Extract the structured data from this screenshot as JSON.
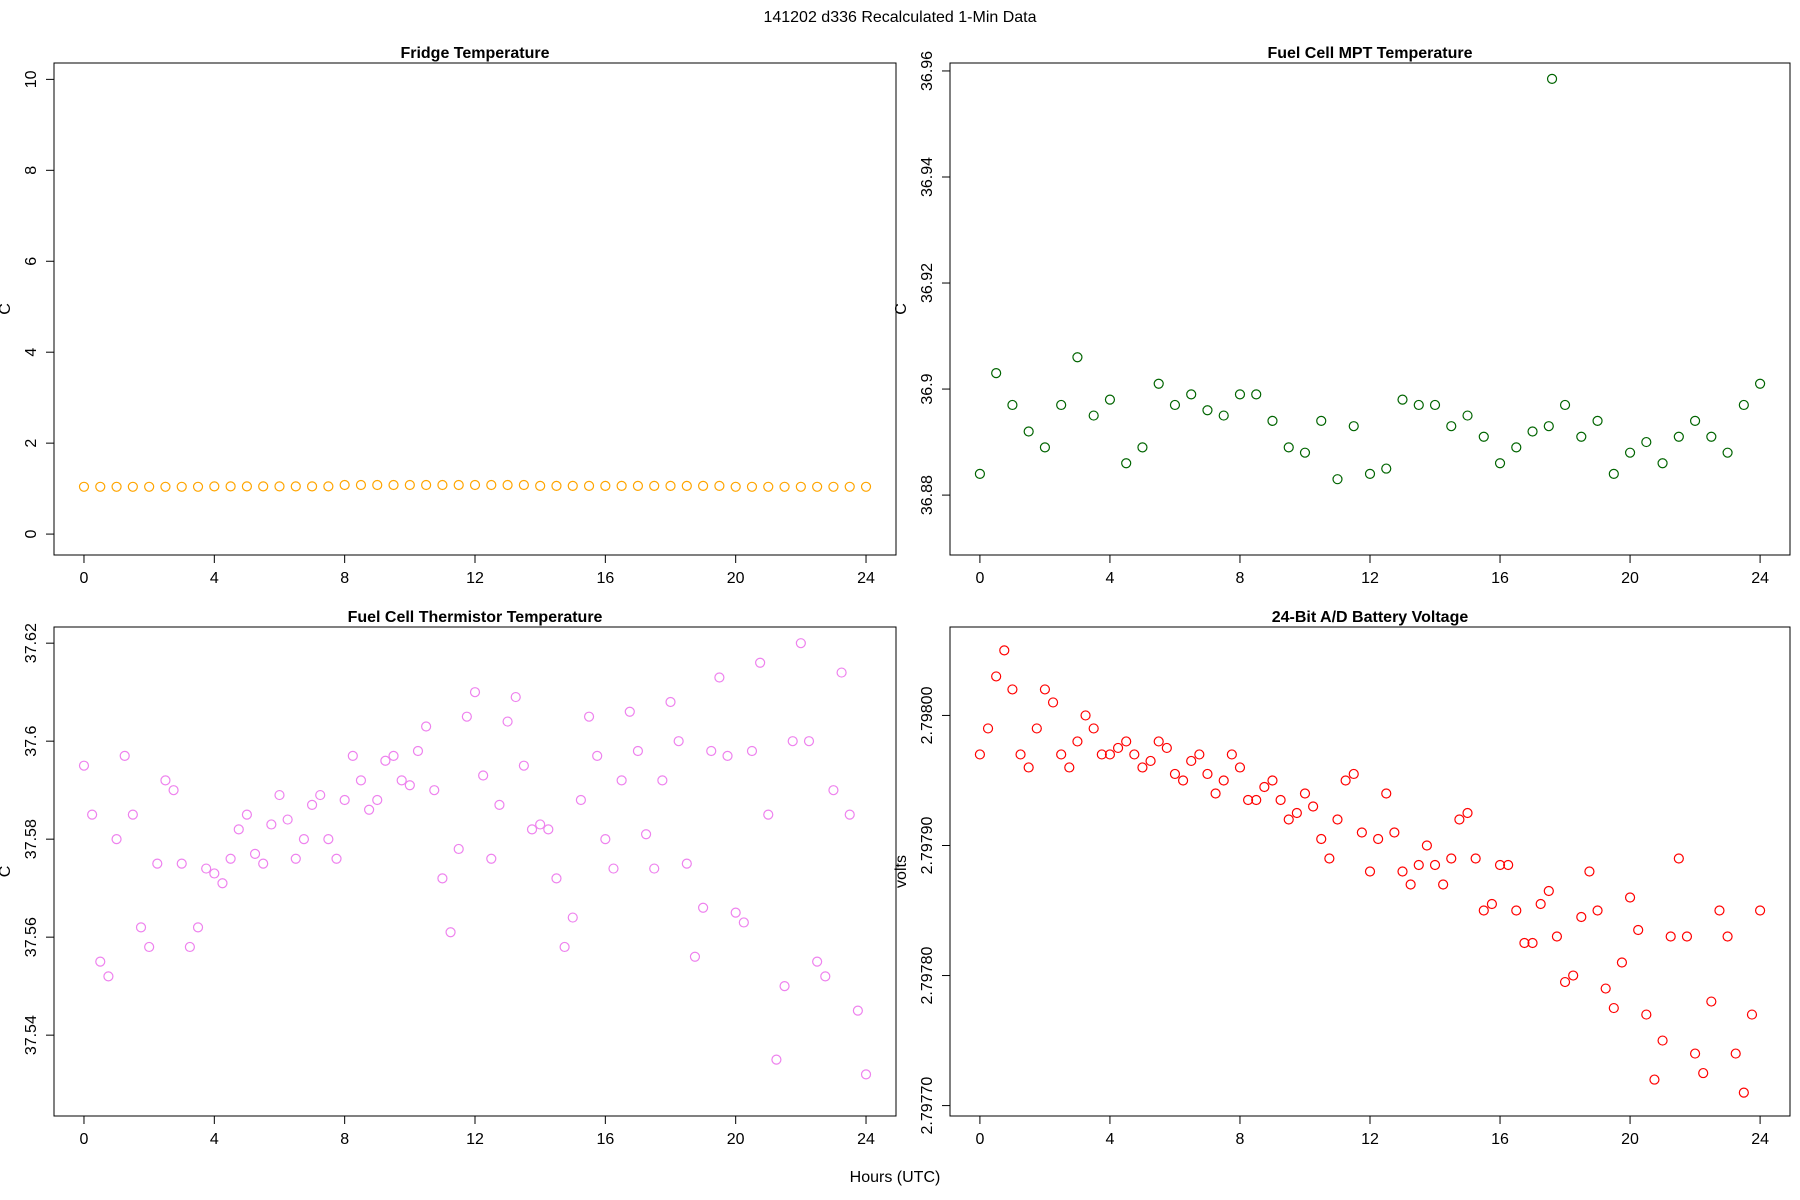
{
  "title": "141202   d336   Recalculated 1-Min Data",
  "xlabel": "Hours (UTC)",
  "chart_data": [
    {
      "type": "scatter",
      "title": "Fridge Temperature",
      "ylabel": "C",
      "color": "#ffa500",
      "xlim": [
        -0.92,
        24.92
      ],
      "xticks": [
        0,
        4,
        8,
        12,
        16,
        20,
        24
      ],
      "ylim": [
        -0.46,
        10.36
      ],
      "yticks": [
        0,
        2,
        4,
        6,
        8,
        10
      ],
      "x": [
        0,
        0.5,
        1,
        1.5,
        2,
        2.5,
        3,
        3.5,
        4,
        4.5,
        5,
        5.5,
        6,
        6.5,
        7,
        7.5,
        8,
        8.5,
        9,
        9.5,
        10,
        10.5,
        11,
        11.5,
        12,
        12.5,
        13,
        13.5,
        14,
        14.5,
        15,
        15.5,
        16,
        16.5,
        17,
        17.5,
        18,
        18.5,
        19,
        19.5,
        20,
        20.5,
        21,
        21.5,
        22,
        22.5,
        23,
        23.5,
        24
      ],
      "values": [
        1.04,
        1.04,
        1.04,
        1.04,
        1.04,
        1.04,
        1.04,
        1.04,
        1.05,
        1.05,
        1.05,
        1.05,
        1.05,
        1.05,
        1.05,
        1.05,
        1.08,
        1.08,
        1.08,
        1.08,
        1.08,
        1.08,
        1.08,
        1.08,
        1.08,
        1.08,
        1.08,
        1.08,
        1.06,
        1.06,
        1.06,
        1.06,
        1.06,
        1.06,
        1.06,
        1.06,
        1.06,
        1.06,
        1.06,
        1.06,
        1.04,
        1.04,
        1.04,
        1.04,
        1.04,
        1.04,
        1.04,
        1.04,
        1.04
      ]
    },
    {
      "type": "scatter",
      "title": "Fuel Cell MPT Temperature",
      "ylabel": "C",
      "color": "#006400",
      "xlim": [
        -0.92,
        24.92
      ],
      "xticks": [
        0,
        4,
        8,
        12,
        16,
        20,
        24
      ],
      "ylim": [
        36.8687,
        36.9615
      ],
      "yticks": [
        36.88,
        36.9,
        36.92,
        36.94,
        36.96
      ],
      "x": [
        0,
        0.5,
        1,
        1.5,
        2,
        2.5,
        3,
        3.5,
        4,
        4.5,
        5,
        5.5,
        6,
        6.5,
        7,
        7.5,
        8,
        8.5,
        9,
        9.5,
        10,
        10.5,
        11,
        11.5,
        12,
        12.5,
        13,
        13.5,
        14,
        14.5,
        15,
        15.5,
        16,
        16.5,
        17,
        17.5,
        17.6,
        18,
        18.5,
        19,
        19.5,
        20,
        20.5,
        21,
        21.5,
        22,
        22.5,
        23,
        23.5,
        24
      ],
      "values": [
        36.884,
        36.903,
        36.897,
        36.892,
        36.889,
        36.897,
        36.906,
        36.895,
        36.898,
        36.886,
        36.889,
        36.901,
        36.897,
        36.899,
        36.896,
        36.895,
        36.899,
        36.899,
        36.894,
        36.889,
        36.888,
        36.894,
        36.883,
        36.893,
        36.884,
        36.885,
        36.898,
        36.897,
        36.897,
        36.893,
        36.895,
        36.891,
        36.886,
        36.889,
        36.892,
        36.893,
        36.9585,
        36.897,
        36.891,
        36.894,
        36.884,
        36.888,
        36.89,
        36.886,
        36.891,
        36.894,
        36.891,
        36.888,
        36.897,
        36.901
      ]
    },
    {
      "type": "scatter",
      "title": "Fuel Cell Thermistor Temperature",
      "ylabel": "C",
      "color": "#ee82ee",
      "xlim": [
        -0.92,
        24.92
      ],
      "xticks": [
        0,
        4,
        8,
        12,
        16,
        20,
        24
      ],
      "ylim": [
        37.5235,
        37.6233
      ],
      "yticks": [
        37.54,
        37.56,
        37.58,
        37.6,
        37.62
      ],
      "x": [
        0,
        0.25,
        0.5,
        0.75,
        1,
        1.25,
        1.5,
        1.75,
        2,
        2.25,
        2.5,
        2.75,
        3,
        3.25,
        3.5,
        3.75,
        4,
        4.25,
        4.5,
        4.75,
        5,
        5.25,
        5.5,
        5.75,
        6,
        6.25,
        6.5,
        6.75,
        7,
        7.25,
        7.5,
        7.75,
        8,
        8.25,
        8.5,
        8.75,
        9,
        9.25,
        9.5,
        9.75,
        10,
        10.25,
        10.5,
        10.75,
        11,
        11.25,
        11.5,
        11.75,
        12,
        12.25,
        12.5,
        12.75,
        13,
        13.25,
        13.5,
        13.75,
        14,
        14.25,
        14.5,
        14.75,
        15,
        15.25,
        15.5,
        15.75,
        16,
        16.25,
        16.5,
        16.75,
        17,
        17.25,
        17.5,
        17.75,
        18,
        18.25,
        18.5,
        18.75,
        19,
        19.25,
        19.5,
        19.75,
        20,
        20.25,
        20.5,
        20.75,
        21,
        21.25,
        21.5,
        21.75,
        22,
        22.25,
        22.5,
        22.75,
        23,
        23.25,
        23.5,
        23.75,
        24
      ],
      "values": [
        37.595,
        37.585,
        37.555,
        37.552,
        37.58,
        37.597,
        37.585,
        37.562,
        37.558,
        37.575,
        37.592,
        37.59,
        37.575,
        37.558,
        37.562,
        37.574,
        37.573,
        37.571,
        37.576,
        37.582,
        37.585,
        37.577,
        37.575,
        37.583,
        37.589,
        37.584,
        37.576,
        37.58,
        37.587,
        37.589,
        37.58,
        37.576,
        37.588,
        37.597,
        37.592,
        37.586,
        37.588,
        37.596,
        37.597,
        37.592,
        37.591,
        37.598,
        37.603,
        37.59,
        37.572,
        37.561,
        37.578,
        37.605,
        37.61,
        37.593,
        37.576,
        37.587,
        37.604,
        37.609,
        37.595,
        37.582,
        37.583,
        37.582,
        37.572,
        37.558,
        37.564,
        37.588,
        37.605,
        37.597,
        37.58,
        37.574,
        37.592,
        37.606,
        37.598,
        37.581,
        37.574,
        37.592,
        37.608,
        37.6,
        37.575,
        37.556,
        37.566,
        37.598,
        37.613,
        37.597,
        37.565,
        37.563,
        37.598,
        37.616,
        37.585,
        37.535,
        37.55,
        37.6,
        37.62,
        37.6,
        37.555,
        37.552,
        37.59,
        37.614,
        37.585,
        37.545,
        37.532
      ]
    },
    {
      "type": "scatter",
      "title": "24-Bit A/D Battery Voltage",
      "ylabel": "volts",
      "color": "#ff0000",
      "xlim": [
        -0.92,
        24.92
      ],
      "xticks": [
        0,
        4,
        8,
        12,
        16,
        20,
        24
      ],
      "ylim": [
        2.797692,
        2.798068
      ],
      "yticks": [
        {
          "value": 2.7977,
          "label": "2.79770"
        },
        {
          "value": 2.7978,
          "label": "2.79780"
        },
        {
          "value": 2.7979,
          "label": "2.79790"
        },
        {
          "value": 2.798,
          "label": "2.79800"
        }
      ],
      "x": [
        0,
        0.25,
        0.5,
        0.75,
        1,
        1.25,
        1.5,
        1.75,
        2,
        2.25,
        2.5,
        2.75,
        3,
        3.25,
        3.5,
        3.75,
        4,
        4.25,
        4.5,
        4.75,
        5,
        5.25,
        5.5,
        5.75,
        6,
        6.25,
        6.5,
        6.75,
        7,
        7.25,
        7.5,
        7.75,
        8,
        8.25,
        8.5,
        8.75,
        9,
        9.25,
        9.5,
        9.75,
        10,
        10.25,
        10.5,
        10.75,
        11,
        11.25,
        11.5,
        11.75,
        12,
        12.25,
        12.5,
        12.75,
        13,
        13.25,
        13.5,
        13.75,
        14,
        14.25,
        14.5,
        14.75,
        15,
        15.25,
        15.5,
        15.75,
        16,
        16.25,
        16.5,
        16.75,
        17,
        17.25,
        17.5,
        17.75,
        18,
        18.25,
        18.5,
        18.75,
        19,
        19.25,
        19.5,
        19.75,
        20,
        20.25,
        20.5,
        20.75,
        21,
        21.25,
        21.5,
        21.75,
        22,
        22.25,
        22.5,
        22.75,
        23,
        23.25,
        23.5,
        23.75,
        24
      ],
      "values": [
        2.79797,
        2.79799,
        2.79803,
        2.79805,
        2.79802,
        2.79797,
        2.79796,
        2.79799,
        2.79802,
        2.79801,
        2.79797,
        2.79796,
        2.79798,
        2.798,
        2.79799,
        2.79797,
        2.79797,
        2.797975,
        2.79798,
        2.79797,
        2.79796,
        2.797965,
        2.79798,
        2.797975,
        2.797955,
        2.79795,
        2.797965,
        2.79797,
        2.797955,
        2.79794,
        2.79795,
        2.79797,
        2.79796,
        2.797935,
        2.797935,
        2.797945,
        2.79795,
        2.797935,
        2.79792,
        2.797925,
        2.79794,
        2.79793,
        2.797905,
        2.79789,
        2.79792,
        2.79795,
        2.797955,
        2.79791,
        2.79788,
        2.797905,
        2.79794,
        2.79791,
        2.79788,
        2.79787,
        2.797885,
        2.7979,
        2.797885,
        2.79787,
        2.79789,
        2.79792,
        2.797925,
        2.79789,
        2.79785,
        2.797855,
        2.797885,
        2.797885,
        2.79785,
        2.797825,
        2.797825,
        2.797855,
        2.797865,
        2.79783,
        2.797795,
        2.7978,
        2.797845,
        2.79788,
        2.79785,
        2.79779,
        2.797775,
        2.79781,
        2.79786,
        2.797835,
        2.79777,
        2.79772,
        2.79775,
        2.79783,
        2.79789,
        2.79783,
        2.79774,
        2.797725,
        2.79778,
        2.79785,
        2.79783,
        2.79774,
        2.79771,
        2.79777,
        2.79785
      ]
    }
  ]
}
